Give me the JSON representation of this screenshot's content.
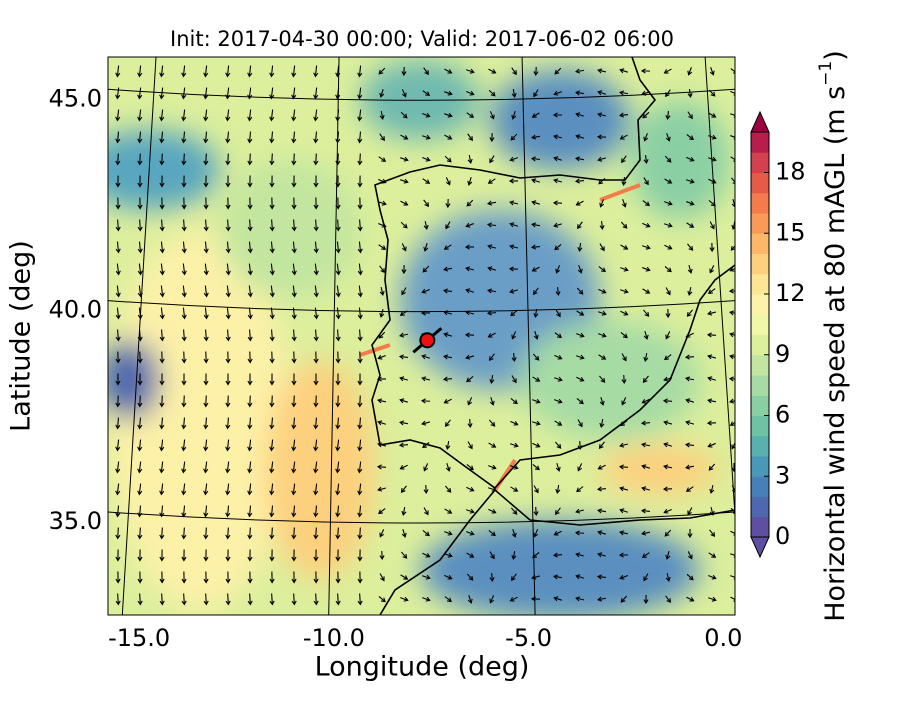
{
  "chart_data": {
    "type": "map",
    "title": "Init: 2017-04-30 00:00; Valid: 2017-06-02 06:00",
    "x_label": "Longitude (deg)",
    "y_label": "Latitude (deg)",
    "xlim": [
      -15.8,
      0.3
    ],
    "ylim": [
      32.8,
      46.0
    ],
    "xticks": [
      {
        "value": -15,
        "label": "-15.0"
      },
      {
        "value": -10,
        "label": "-10.0"
      },
      {
        "value": -5,
        "label": "-5.0"
      },
      {
        "value": 0,
        "label": "0.0"
      }
    ],
    "yticks": [
      {
        "value": 35,
        "label": "35.0"
      },
      {
        "value": 40,
        "label": "40.0"
      },
      {
        "value": 45,
        "label": "45.0"
      }
    ],
    "marker": {
      "lon": -7.6,
      "lat": 39.3,
      "color": "#ee1111"
    },
    "colorbar": {
      "label_parts": [
        "Horizontal wind speed at 80 mAGL (m s",
        "−1",
        ")"
      ],
      "clim": [
        0,
        20
      ],
      "ticks": [
        0,
        3,
        6,
        9,
        12,
        15,
        18
      ],
      "colors": [
        "#5e4fa2",
        "#4f67ae",
        "#4780b9",
        "#4a98b8",
        "#58b1ad",
        "#6dc4a5",
        "#8acfa4",
        "#a6dba4",
        "#c2e69f",
        "#dbf09a",
        "#f0f7a6",
        "#fdf2aa",
        "#fee593",
        "#fdd07e",
        "#fdb768",
        "#f99b56",
        "#f47b4a",
        "#e65b48",
        "#d3404e",
        "#b81f48"
      ],
      "under_color": "#5e4fa2",
      "over_color": "#9e0142"
    }
  }
}
